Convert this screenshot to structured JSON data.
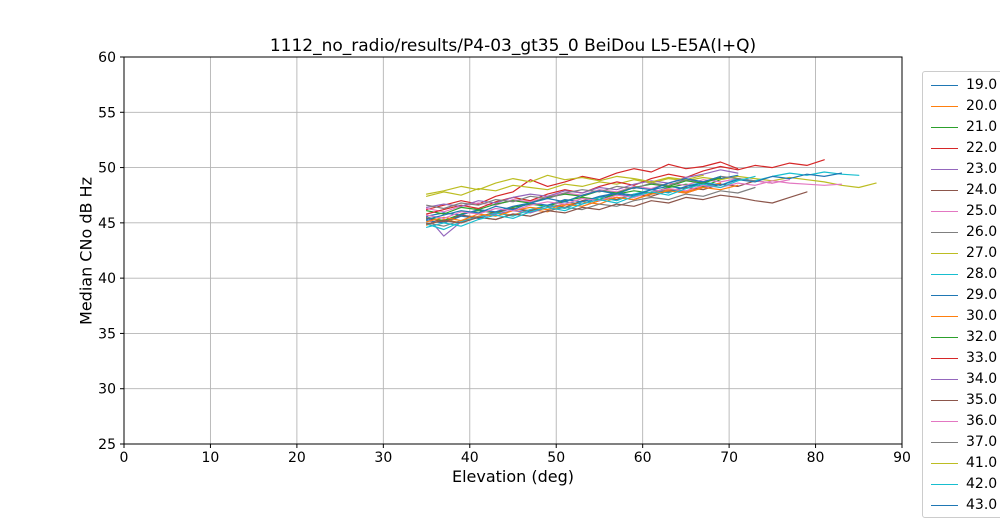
{
  "chart_data": {
    "type": "line",
    "title": "1112_no_radio/results/P4-03_gt35_0 BeiDou L5-E5A(I+Q)",
    "xlabel": "Elevation (deg)",
    "ylabel": "Median CNo dB Hz",
    "xlim": [
      0,
      90
    ],
    "ylim": [
      25,
      60
    ],
    "x_ticks": [
      0,
      10,
      20,
      30,
      40,
      50,
      60,
      70,
      80,
      90
    ],
    "y_ticks": [
      25,
      30,
      35,
      40,
      45,
      50,
      55,
      60
    ],
    "grid": true,
    "grid_color": "#b4b4b4",
    "spine_color": "#000000",
    "legend_position": "right-outside-clipped",
    "line_width": 1.2,
    "series": [
      {
        "name": "19.0",
        "color": "#1f77b4",
        "x_start": 35,
        "x_step": 2,
        "values": [
          45.2,
          45.0,
          45.6,
          45.4,
          45.9,
          46.3,
          46.0,
          46.6,
          46.9,
          46.7,
          47.3,
          47.6,
          47.4,
          48.0,
          48.3,
          48.1,
          48.7,
          49.0,
          49.3
        ]
      },
      {
        "name": "20.0",
        "color": "#ff7f0e",
        "x_start": 35,
        "x_step": 2,
        "values": [
          44.8,
          45.3,
          45.0,
          45.6,
          45.9,
          45.7,
          46.2,
          46.0,
          46.6,
          46.9,
          46.7,
          47.3,
          47.1,
          47.7,
          48.0,
          47.8,
          48.3,
          48.6
        ]
      },
      {
        "name": "21.0",
        "color": "#2ca02c",
        "x_start": 35,
        "x_step": 2,
        "values": [
          45.5,
          45.2,
          45.8,
          46.1,
          45.9,
          46.4,
          46.7,
          46.5,
          47.0,
          47.3,
          47.1,
          47.6,
          47.9,
          47.7,
          48.2,
          48.5,
          48.3,
          48.9
        ]
      },
      {
        "name": "22.0",
        "color": "#d62728",
        "x_start": 35,
        "x_step": 2,
        "values": [
          46.2,
          46.6,
          47.0,
          46.7,
          47.4,
          47.8,
          48.9,
          48.3,
          48.7,
          49.2,
          48.9,
          49.5,
          49.9,
          49.6,
          50.3,
          49.9,
          50.1,
          50.5,
          49.9
        ]
      },
      {
        "name": "23.0",
        "color": "#9467bd",
        "x_start": 35,
        "x_step": 2,
        "values": [
          45.6,
          43.8,
          45.1,
          45.5,
          45.8,
          46.1,
          45.9,
          46.4,
          46.7,
          46.5,
          47.0,
          47.3,
          47.1,
          47.6,
          47.9,
          47.7,
          48.2,
          48.5,
          48.3
        ]
      },
      {
        "name": "24.0",
        "color": "#8c564b",
        "x_start": 35,
        "x_step": 2,
        "values": [
          45.4,
          45.1,
          45.7,
          45.5,
          46.0,
          46.3,
          46.1,
          46.6,
          46.4,
          47.0,
          47.3,
          47.1,
          47.6,
          47.4,
          47.9,
          48.2,
          48.0,
          48.5,
          48.3,
          48.8,
          48.6
        ]
      },
      {
        "name": "25.0",
        "color": "#e377c2",
        "x_start": 35,
        "x_step": 2,
        "values": [
          46.3,
          46.0,
          46.5,
          46.8,
          46.6,
          47.1,
          46.9,
          47.4,
          47.7,
          47.5,
          48.0,
          47.8,
          48.3,
          48.1,
          48.6,
          48.4,
          48.9,
          48.7,
          49.0,
          48.8,
          48.6,
          48.9
        ]
      },
      {
        "name": "26.0",
        "color": "#7f7f7f",
        "x_start": 35,
        "x_step": 2,
        "values": [
          45.0,
          44.7,
          45.2,
          45.5,
          45.3,
          45.8,
          45.6,
          46.1,
          46.4,
          46.2,
          46.7,
          46.5,
          47.0,
          47.3,
          47.1,
          47.6,
          47.4,
          47.9,
          47.7,
          48.2
        ]
      },
      {
        "name": "27.0",
        "color": "#bcbd22",
        "x_start": 35,
        "x_step": 2,
        "values": [
          47.4,
          47.8,
          47.5,
          48.1,
          47.9,
          48.4,
          48.2,
          48.0,
          48.5,
          48.3,
          48.7,
          48.5,
          48.9,
          48.6,
          49.0,
          48.8,
          49.1,
          48.9,
          49.2,
          49.0,
          48.8,
          49.1,
          48.9,
          48.7,
          48.4,
          48.2,
          48.6
        ]
      },
      {
        "name": "28.0",
        "color": "#17becf",
        "x_start": 35,
        "x_step": 2,
        "values": [
          44.9,
          44.4,
          45.1,
          45.5,
          45.9,
          45.6,
          46.2,
          46.6,
          46.3,
          46.9,
          47.3,
          47.0,
          47.6,
          48.0,
          47.7,
          48.3,
          48.7,
          48.4,
          49.0,
          48.8,
          49.2,
          49.5,
          49.3,
          49.6,
          49.4,
          49.3
        ]
      },
      {
        "name": "29.0",
        "color": "#1f77b4",
        "x_start": 35,
        "x_step": 2,
        "values": [
          45.6,
          45.9,
          45.7,
          46.2,
          46.0,
          46.5,
          46.8,
          46.6,
          47.1,
          46.9,
          47.4,
          47.7,
          47.5,
          48.0,
          47.8,
          48.3,
          48.6,
          48.4,
          48.9,
          48.7,
          49.2,
          49.0,
          49.4,
          49.2,
          49.5
        ]
      },
      {
        "name": "30.0",
        "color": "#ff7f0e",
        "x_start": 35,
        "x_step": 2,
        "values": [
          45.1,
          45.5,
          45.2,
          45.8,
          45.6,
          46.1,
          46.4,
          46.2,
          46.7,
          46.5,
          47.0,
          47.3,
          47.1,
          47.6,
          47.9,
          47.7,
          48.2,
          48.0,
          48.4
        ]
      },
      {
        "name": "32.0",
        "color": "#2ca02c",
        "x_start": 35,
        "x_step": 2,
        "values": [
          46.1,
          45.8,
          46.4,
          46.2,
          46.7,
          47.0,
          46.8,
          47.3,
          47.6,
          47.4,
          47.9,
          47.7,
          48.2,
          48.5,
          48.3,
          48.8,
          48.6,
          49.1
        ]
      },
      {
        "name": "33.0",
        "color": "#d62728",
        "x_start": 35,
        "x_step": 2,
        "values": [
          45.8,
          46.2,
          46.6,
          46.3,
          46.9,
          47.3,
          47.0,
          47.6,
          48.0,
          47.7,
          48.3,
          48.7,
          48.4,
          49.0,
          49.4,
          49.1,
          49.7,
          50.1,
          49.8,
          50.2,
          50.0,
          50.4,
          50.2,
          50.7
        ]
      },
      {
        "name": "34.0",
        "color": "#9467bd",
        "x_start": 35,
        "x_step": 2,
        "values": [
          46.4,
          46.7,
          46.5,
          47.0,
          46.8,
          47.3,
          47.6,
          47.4,
          47.9,
          47.7,
          48.2,
          48.0,
          48.5,
          48.8,
          48.6,
          49.1,
          49.4,
          49.8,
          49.5
        ]
      },
      {
        "name": "35.0",
        "color": "#8c564b",
        "x_start": 35,
        "x_step": 2,
        "values": [
          44.9,
          45.2,
          45.0,
          45.5,
          45.3,
          45.8,
          45.6,
          46.1,
          45.9,
          46.4,
          46.2,
          46.7,
          46.5,
          47.0,
          46.8,
          47.3,
          47.1,
          47.5,
          47.3,
          47.0,
          46.8,
          47.3,
          47.8
        ]
      },
      {
        "name": "36.0",
        "color": "#e377c2",
        "x_start": 35,
        "x_step": 2,
        "values": [
          45.7,
          45.4,
          46.0,
          45.8,
          46.3,
          46.1,
          46.6,
          46.9,
          46.7,
          47.2,
          47.0,
          47.5,
          47.3,
          47.8,
          48.1,
          47.9,
          48.4,
          48.2,
          48.6,
          48.4,
          48.8,
          48.6,
          48.5,
          48.4,
          48.5
        ]
      },
      {
        "name": "37.0",
        "color": "#7f7f7f",
        "x_start": 35,
        "x_step": 2,
        "values": [
          46.6,
          46.3,
          46.8,
          46.6,
          47.1,
          46.9,
          47.4,
          47.2,
          47.7,
          48.0,
          47.8,
          48.3,
          48.1,
          48.6,
          48.4,
          48.9,
          48.7,
          49.2,
          49.0,
          48.8
        ]
      },
      {
        "name": "41.0",
        "color": "#bcbd22",
        "x_start": 35,
        "x_step": 2,
        "values": [
          47.6,
          47.9,
          48.3,
          48.0,
          48.6,
          49.0,
          48.7,
          49.3,
          48.9,
          49.1,
          48.8,
          49.2,
          49.0,
          48.7,
          49.1,
          48.9,
          49.3
        ]
      },
      {
        "name": "42.0",
        "color": "#17becf",
        "x_start": 35,
        "x_step": 2,
        "values": [
          44.6,
          45.0,
          44.7,
          45.3,
          45.7,
          45.4,
          46.0,
          46.4,
          46.1,
          46.7,
          47.1,
          46.8,
          47.4,
          47.8,
          47.5,
          48.1,
          48.5,
          48.2,
          48.8,
          49.2
        ]
      },
      {
        "name": "43.0",
        "color": "#1f77b4",
        "x_start": 35,
        "x_step": 2,
        "values": [
          45.3,
          45.7,
          46.1,
          45.9,
          46.5,
          46.2,
          46.8,
          47.2,
          46.9,
          47.5,
          47.9,
          47.6,
          48.2,
          48.0,
          48.6,
          49.0,
          48.7,
          49.2
        ]
      }
    ]
  }
}
